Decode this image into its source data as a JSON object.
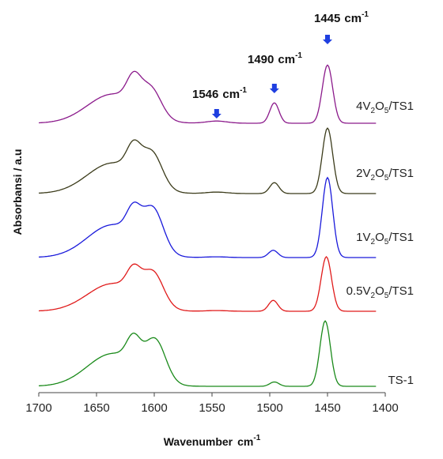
{
  "chart_data": {
    "type": "line",
    "xlabel": "Wavenumber",
    "xlabel_unit": "cm",
    "xlabel_unit_sup": "-1",
    "ylabel": "Absorbansi / a.u",
    "xlim": [
      1700,
      1400
    ],
    "x_reversed": true,
    "xticks": [
      1700,
      1650,
      1600,
      1550,
      1500,
      1450,
      1400
    ],
    "xtick_labels": [
      "1700",
      "1650",
      "1600",
      "1550",
      "1500",
      "1450",
      "1400"
    ],
    "grid": false,
    "legend": "none",
    "annotations": [
      {
        "value": "1546",
        "unit": "cm",
        "sup": "-1",
        "x": 1546
      },
      {
        "value": "1490",
        "unit": "cm",
        "sup": "-1",
        "x": 1496
      },
      {
        "value": "1445",
        "unit": "cm",
        "sup": "-1",
        "x": 1450
      }
    ],
    "series": [
      {
        "label_parts": [
          "4V",
          "2",
          "O",
          "5",
          "/TS1"
        ],
        "color": "#8b1a8b",
        "offset": 4,
        "peaks": [
          [
            1636,
            0.4
          ],
          [
            1618,
            0.33
          ],
          [
            1603,
            0.38
          ],
          [
            1546,
            0.03
          ],
          [
            1496,
            0.28
          ],
          [
            1450,
            0.8
          ]
        ]
      },
      {
        "label_parts": [
          "2V",
          "2",
          "O",
          "5",
          "/TS1"
        ],
        "color": "#3b3b1a",
        "offset": 3,
        "peaks": [
          [
            1636,
            0.42
          ],
          [
            1618,
            0.34
          ],
          [
            1602,
            0.46
          ],
          [
            1546,
            0.02
          ],
          [
            1496,
            0.15
          ],
          [
            1450,
            0.9
          ]
        ]
      },
      {
        "label_parts": [
          "1V",
          "2",
          "O",
          "5",
          "/TS1"
        ],
        "color": "#1a1adb",
        "offset": 2,
        "peaks": [
          [
            1636,
            0.45
          ],
          [
            1618,
            0.34
          ],
          [
            1601,
            0.57
          ],
          [
            1546,
            0.01
          ],
          [
            1497,
            0.1
          ],
          [
            1450,
            1.1
          ]
        ]
      },
      {
        "label_parts": [
          "0.5V",
          "2",
          "O",
          "5",
          "/TS1"
        ],
        "color": "#e01a1a",
        "offset": 1,
        "peaks": [
          [
            1636,
            0.38
          ],
          [
            1618,
            0.3
          ],
          [
            1601,
            0.45
          ],
          [
            1546,
            0.01
          ],
          [
            1497,
            0.15
          ],
          [
            1451,
            0.75
          ]
        ]
      },
      {
        "label_parts": [
          "TS-1",
          "",
          "",
          "",
          ""
        ],
        "color": "#1a8a1a",
        "offset": 0,
        "peaks": [
          [
            1636,
            0.45
          ],
          [
            1618,
            0.35
          ],
          [
            1599,
            0.55
          ],
          [
            1546,
            0.0
          ],
          [
            1496,
            0.06
          ],
          [
            1452,
            0.9
          ]
        ]
      }
    ]
  }
}
